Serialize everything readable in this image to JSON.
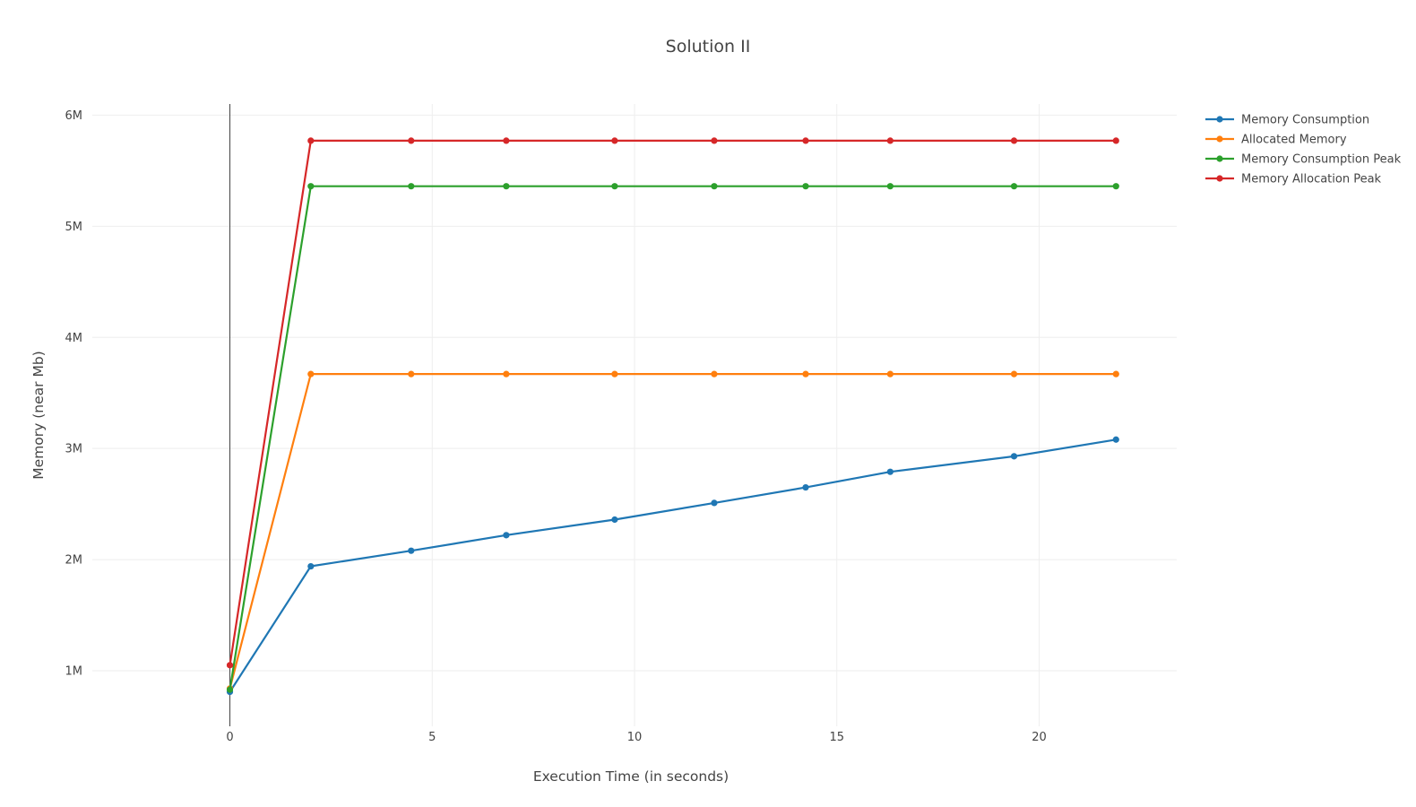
{
  "chart_data": {
    "type": "line",
    "title": "Solution II",
    "xlabel": "Execution Time (in seconds)",
    "ylabel": "Memory (near Mb)",
    "x_ticks": [
      "0",
      "5",
      "10",
      "15",
      "20"
    ],
    "x_tick_values": [
      0,
      5,
      10,
      15,
      20
    ],
    "y_ticks": [
      "1M",
      "2M",
      "3M",
      "4M",
      "5M",
      "6M"
    ],
    "y_tick_values": [
      1000000,
      2000000,
      3000000,
      4000000,
      5000000,
      6000000
    ],
    "xlim": [
      -3.4,
      23.4
    ],
    "ylim": [
      500000,
      6100000
    ],
    "grid": true,
    "legend_position": "top-right",
    "x": [
      0,
      2,
      4.48,
      6.83,
      9.51,
      11.97,
      14.23,
      16.32,
      19.38,
      21.9
    ],
    "series": [
      {
        "name": "Memory Consumption",
        "color": "#1f77b4",
        "values": [
          810000,
          1940000,
          2080000,
          2220000,
          2360000,
          2510000,
          2650000,
          2790000,
          2930000,
          3080000
        ]
      },
      {
        "name": "Allocated Memory",
        "color": "#ff7f0e",
        "values": [
          840000,
          3670000,
          3670000,
          3670000,
          3670000,
          3670000,
          3670000,
          3670000,
          3670000,
          3670000
        ]
      },
      {
        "name": "Memory Consumption Peak",
        "color": "#2ca02c",
        "values": [
          830000,
          5360000,
          5360000,
          5360000,
          5360000,
          5360000,
          5360000,
          5360000,
          5360000,
          5360000
        ]
      },
      {
        "name": "Memory Allocation Peak",
        "color": "#d62728",
        "values": [
          1050000,
          5770000,
          5770000,
          5770000,
          5770000,
          5770000,
          5770000,
          5770000,
          5770000,
          5770000
        ]
      }
    ]
  }
}
